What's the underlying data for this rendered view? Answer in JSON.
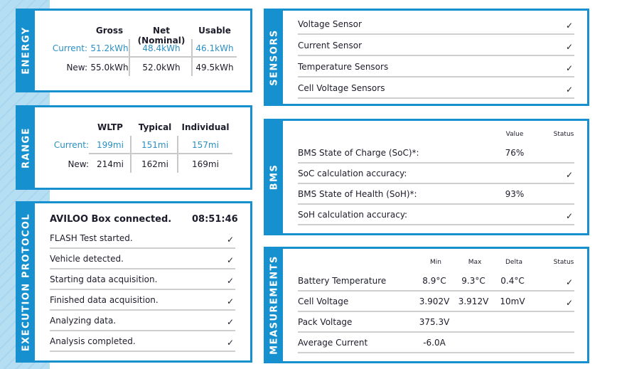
{
  "energy": {
    "title": "ENERGY",
    "columns": [
      "Gross",
      "Net (Nominal)",
      "Usable"
    ],
    "rows": [
      {
        "label": "Current:",
        "values": [
          "51.2kWh",
          "48.4kWh",
          "46.1kWh"
        ]
      },
      {
        "label": "New:",
        "values": [
          "55.0kWh",
          "52.0kWh",
          "49.5kWh"
        ]
      }
    ]
  },
  "range": {
    "title": "RANGE",
    "columns": [
      "WLTP",
      "Typical",
      "Individual"
    ],
    "rows": [
      {
        "label": "Current:",
        "values": [
          "199mi",
          "151mi",
          "157mi"
        ]
      },
      {
        "label": "New:",
        "values": [
          "214mi",
          "162mi",
          "169mi"
        ]
      }
    ]
  },
  "protocol": {
    "title": "EXECUTION PROTOCOL",
    "header": "AVILOO Box connected.",
    "time": "08:51:46",
    "steps": [
      "FLASH Test started.",
      "Vehicle detected.",
      "Starting data acquisition.",
      "Finished data acquisition.",
      "Analyzing data.",
      "Analysis completed."
    ],
    "check_icon": "✓"
  },
  "sensors": {
    "title": "SENSORS",
    "items": [
      "Voltage Sensor",
      "Current Sensor",
      "Temperature Sensors",
      "Cell Voltage Sensors"
    ]
  },
  "bms": {
    "title": "BMS",
    "columns": [
      "Value",
      "Status"
    ],
    "rows": [
      {
        "label": "BMS State of Charge (SoC)*:",
        "value": "76%",
        "status": ""
      },
      {
        "label": "SoC calculation accuracy:",
        "value": "",
        "status": "✓"
      },
      {
        "label": "BMS State of Health (SoH)*:",
        "value": "93%",
        "status": ""
      },
      {
        "label": "SoH calculation accuracy:",
        "value": "",
        "status": "✓"
      }
    ]
  },
  "measurements": {
    "title": "MEASUREMENTS",
    "columns": [
      "Min",
      "Max",
      "Delta",
      "Status"
    ],
    "rows": [
      {
        "label": "Battery Temperature",
        "min": "8.9°C",
        "max": "9.3°C",
        "delta": "0.4°C",
        "status": "✓"
      },
      {
        "label": "Cell Voltage",
        "min": "3.902V",
        "max": "3.912V",
        "delta": "10mV",
        "status": "✓"
      },
      {
        "label": "Pack Voltage",
        "min": "375.3V",
        "max": "",
        "delta": "",
        "status": ""
      },
      {
        "label": "Average Current",
        "min": "-6.0A",
        "max": "",
        "delta": "",
        "status": ""
      }
    ]
  },
  "colors": {
    "accent": "#1790cf",
    "current_value": "#2a8fc4"
  }
}
